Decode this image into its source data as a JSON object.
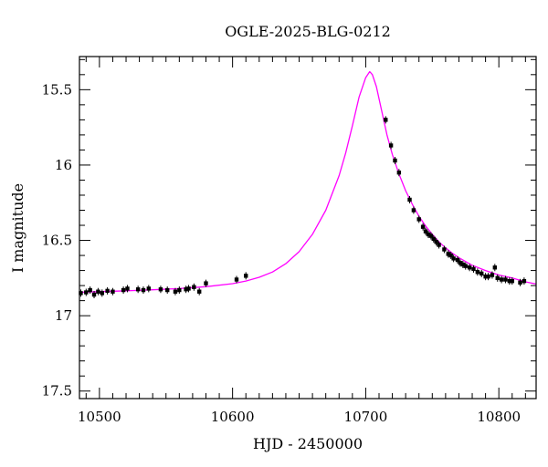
{
  "chart_data": {
    "type": "scatter",
    "title": "OGLE-2025-BLG-0212",
    "xlabel": "HJD - 2450000",
    "ylabel": "I magnitude",
    "xlim": [
      10485,
      10828
    ],
    "ylim": [
      17.55,
      15.28
    ],
    "y_inverted": true,
    "x_ticks": [
      10500,
      10600,
      10700,
      10800
    ],
    "y_ticks": [
      15.5,
      16,
      16.5,
      17,
      17.5
    ],
    "colors": {
      "model": "#ff00ff",
      "points": "#000000",
      "axes": "#000000"
    },
    "model": {
      "name": "",
      "color": "#ff00ff",
      "x": [
        10485,
        10500,
        10520,
        10540,
        10560,
        10580,
        10600,
        10610,
        10620,
        10630,
        10640,
        10650,
        10660,
        10670,
        10680,
        10685,
        10690,
        10695,
        10700,
        10703,
        10705,
        10708,
        10712,
        10716,
        10720,
        10725,
        10730,
        10735,
        10740,
        10745,
        10750,
        10755,
        10760,
        10765,
        10770,
        10775,
        10780,
        10790,
        10800,
        10810,
        10820,
        10828
      ],
      "y": [
        16.845,
        16.84,
        16.835,
        16.828,
        16.82,
        16.807,
        16.787,
        16.77,
        16.745,
        16.71,
        16.655,
        16.575,
        16.46,
        16.3,
        16.07,
        15.92,
        15.74,
        15.55,
        15.42,
        15.38,
        15.4,
        15.48,
        15.64,
        15.8,
        15.93,
        16.06,
        16.17,
        16.26,
        16.34,
        16.405,
        16.46,
        16.51,
        16.55,
        16.585,
        16.615,
        16.64,
        16.665,
        16.7,
        16.73,
        16.75,
        16.775,
        16.79
      ]
    },
    "series": [
      {
        "name": "",
        "color": "#000000",
        "x": [
          10486,
          10490,
          10493,
          10496,
          10499,
          10502,
          10506,
          10510,
          10518,
          10521,
          10529,
          10533,
          10537,
          10546,
          10551,
          10557,
          10560,
          10565,
          10567,
          10571,
          10575,
          10580,
          10603,
          10610,
          10715,
          10719,
          10722,
          10725,
          10733,
          10736,
          10740,
          10743,
          10745,
          10747,
          10749,
          10751,
          10753,
          10755,
          10759,
          10762,
          10764,
          10766,
          10769,
          10771,
          10773,
          10775,
          10778,
          10781,
          10784,
          10787,
          10790,
          10792,
          10795,
          10797,
          10799,
          10802,
          10805,
          10808,
          10810,
          10816,
          10819
        ],
        "y": [
          16.85,
          16.845,
          16.83,
          16.86,
          16.84,
          16.85,
          16.835,
          16.84,
          16.83,
          16.82,
          16.825,
          16.83,
          16.82,
          16.825,
          16.83,
          16.84,
          16.83,
          16.825,
          16.82,
          16.81,
          16.84,
          16.785,
          16.76,
          16.735,
          15.7,
          15.87,
          15.97,
          16.05,
          16.23,
          16.3,
          16.36,
          16.41,
          16.44,
          16.46,
          16.47,
          16.49,
          16.51,
          16.53,
          16.56,
          16.59,
          16.6,
          16.62,
          16.63,
          16.65,
          16.66,
          16.67,
          16.68,
          16.69,
          16.71,
          16.72,
          16.74,
          16.74,
          16.73,
          16.68,
          16.75,
          16.76,
          16.76,
          16.77,
          16.77,
          16.78,
          16.77
        ]
      }
    ]
  }
}
